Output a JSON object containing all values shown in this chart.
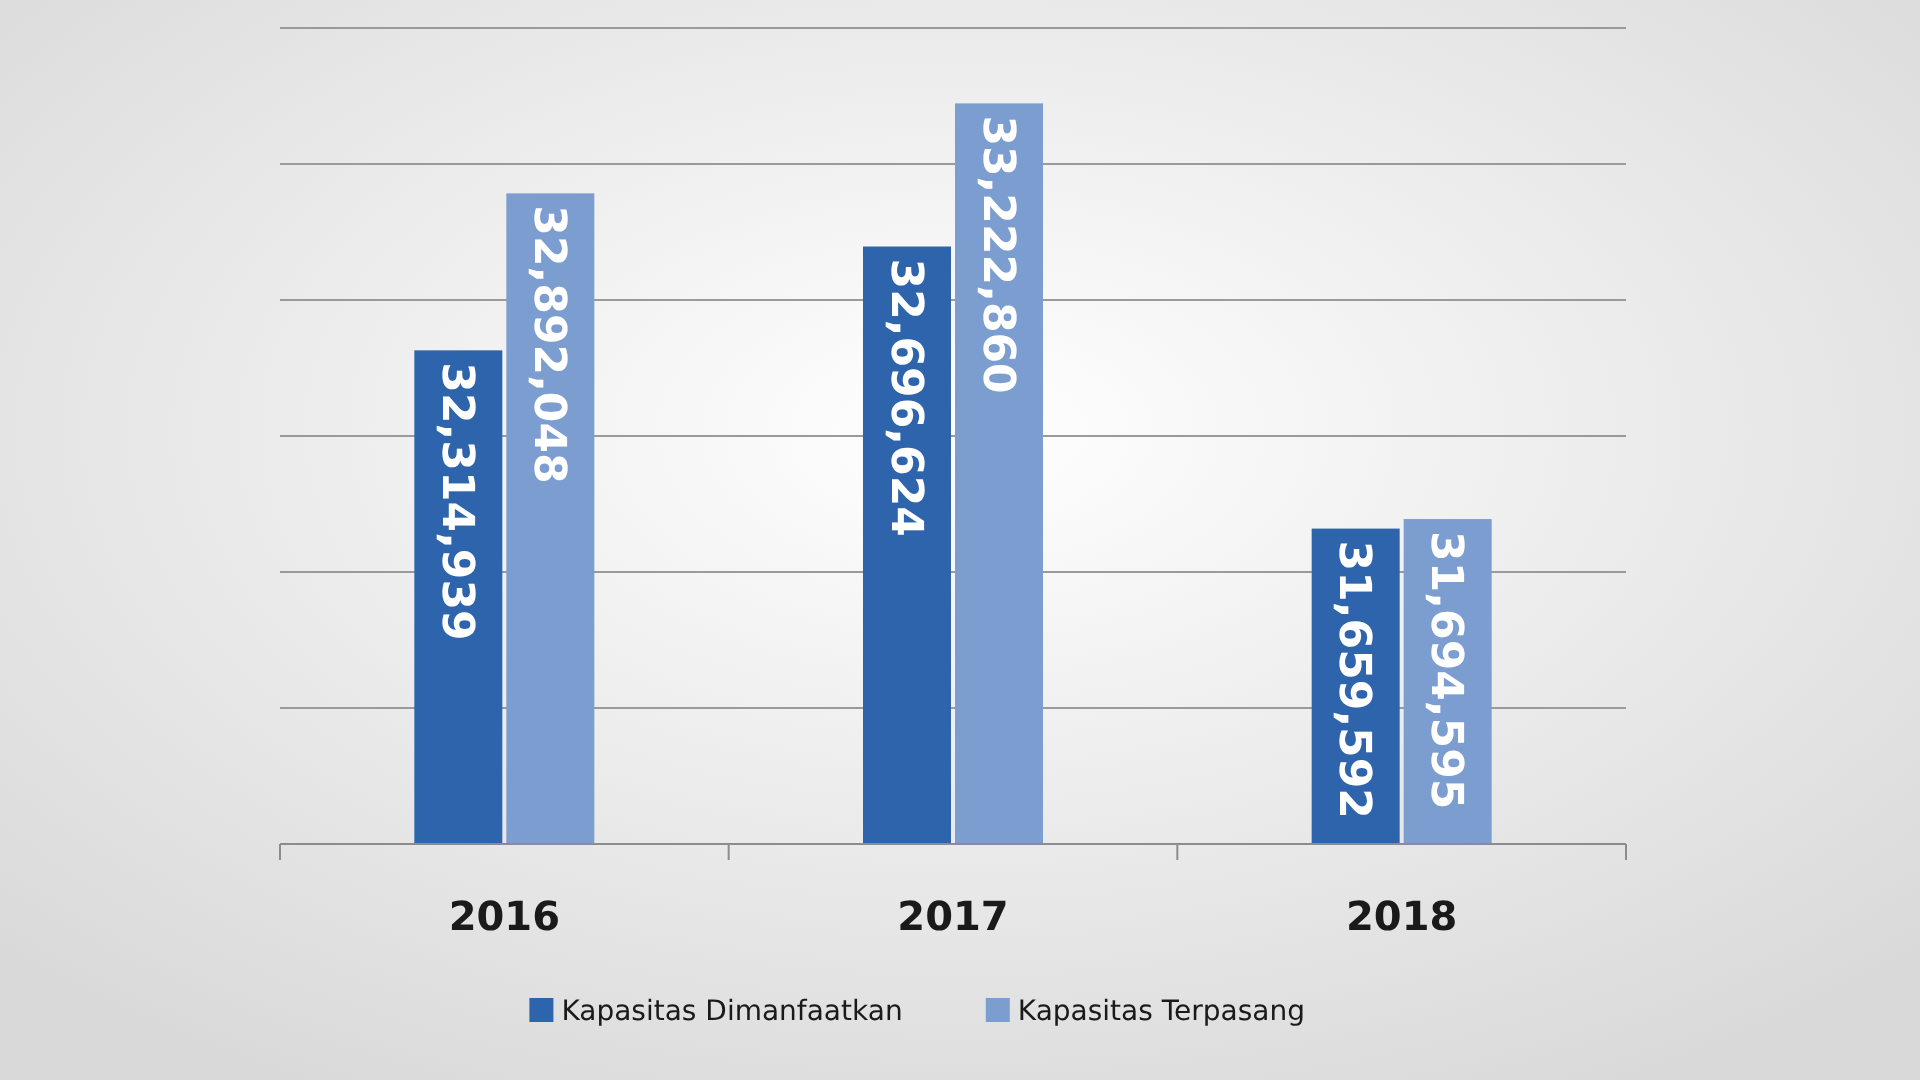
{
  "chart_data": {
    "type": "bar",
    "categories": [
      "2016",
      "2017",
      "2018"
    ],
    "series": [
      {
        "name": "Kapasitas Dimanfaatkan",
        "color": "#2e64ab",
        "values": [
          32314939,
          32696624,
          31659592
        ],
        "value_labels": [
          "32,314,939",
          "32,696,624",
          "31,659,592"
        ]
      },
      {
        "name": "Kapasitas Terpasang",
        "color": "#7c9dd0",
        "values": [
          32892048,
          33222860,
          31694595
        ],
        "value_labels": [
          "32,892,048",
          "33,222,860",
          "31,694,595"
        ]
      }
    ],
    "ylim": [
      30500000,
      33500000
    ],
    "tick_labels": "x",
    "grid": "y",
    "legend": "bottom"
  }
}
